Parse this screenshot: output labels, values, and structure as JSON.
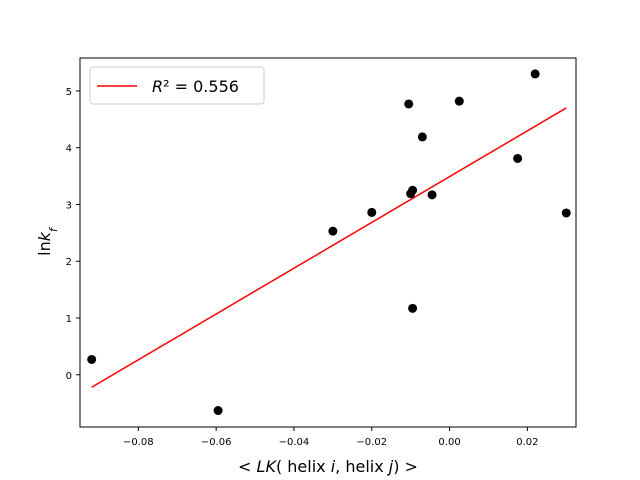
{
  "chart_data": {
    "type": "scatter",
    "xlabel": "< LK( helix i, helix j) >",
    "ylabel": "lnk_f",
    "xlim": [
      -0.095,
      0.0325
    ],
    "ylim": [
      -0.92,
      5.58
    ],
    "xticks": [
      -0.08,
      -0.06,
      -0.04,
      -0.02,
      0.0,
      0.02
    ],
    "xtick_labels": [
      "−0.08",
      "−0.06",
      "−0.04",
      "−0.02",
      "0.00",
      "0.02"
    ],
    "yticks": [
      0,
      1,
      2,
      3,
      4,
      5
    ],
    "ytick_labels": [
      "0",
      "1",
      "2",
      "3",
      "4",
      "5"
    ],
    "points": [
      {
        "x": -0.092,
        "y": 0.27
      },
      {
        "x": -0.0595,
        "y": -0.63
      },
      {
        "x": -0.03,
        "y": 2.53
      },
      {
        "x": -0.02,
        "y": 2.86
      },
      {
        "x": -0.0105,
        "y": 4.77
      },
      {
        "x": -0.01,
        "y": 3.19
      },
      {
        "x": -0.0095,
        "y": 3.25
      },
      {
        "x": -0.0095,
        "y": 1.17
      },
      {
        "x": -0.007,
        "y": 4.19
      },
      {
        "x": -0.0045,
        "y": 3.17
      },
      {
        "x": 0.0025,
        "y": 4.82
      },
      {
        "x": 0.0175,
        "y": 3.81
      },
      {
        "x": 0.022,
        "y": 5.3
      },
      {
        "x": 0.03,
        "y": 2.85
      }
    ],
    "fit_line": {
      "x": [
        -0.092,
        0.03
      ],
      "y": [
        -0.22,
        4.7
      ],
      "color": "#ff0000"
    },
    "point_color": "#000000",
    "legend": {
      "position": "upper-left",
      "label": "R² = 0.556"
    },
    "grid": false
  }
}
